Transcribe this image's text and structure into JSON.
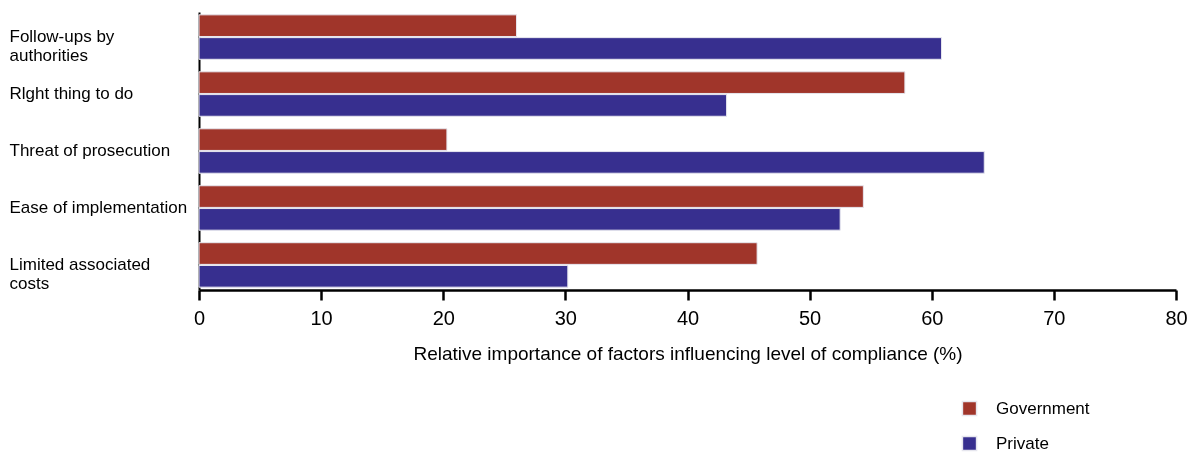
{
  "chart_data": {
    "type": "bar",
    "orientation": "horizontal",
    "xlabel": "Relative importance of factors influencing level of compliance (%)",
    "categories": [
      "Follow-ups by authorities",
      "Rlght thing to do",
      "Threat of prosecution",
      "Ease of implementation",
      "Limited associated costs"
    ],
    "series": [
      {
        "name": "Government",
        "color": "#a0352a",
        "values": [
          26.0,
          57.8,
          20.3,
          54.4,
          45.7
        ]
      },
      {
        "name": "Private",
        "color": "#372f8f",
        "values": [
          60.8,
          43.2,
          64.3,
          52.5,
          30.2
        ]
      }
    ],
    "xlim": [
      0,
      80
    ],
    "xticks": [
      0,
      10,
      20,
      30,
      40,
      50,
      60,
      70,
      80
    ],
    "grid": false,
    "legend": "bottom right"
  }
}
